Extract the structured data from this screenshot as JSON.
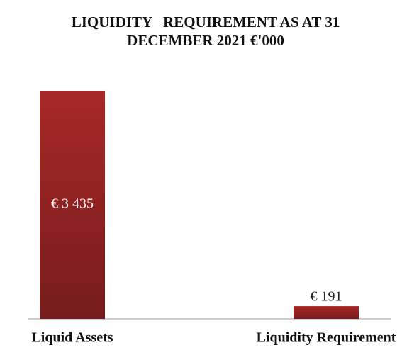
{
  "chart_data": {
    "type": "bar",
    "title": "LIQUIDITY   REQUIREMENT AS AT 31 DECEMBER 2021 €'000",
    "categories": [
      "Liquid Assets",
      "Liquidity Requirement"
    ],
    "values": [
      3435,
      191
    ],
    "value_labels": [
      "€ 3 435",
      "€ 191"
    ],
    "color": "#a82828",
    "ylim": [
      0,
      3435
    ]
  }
}
